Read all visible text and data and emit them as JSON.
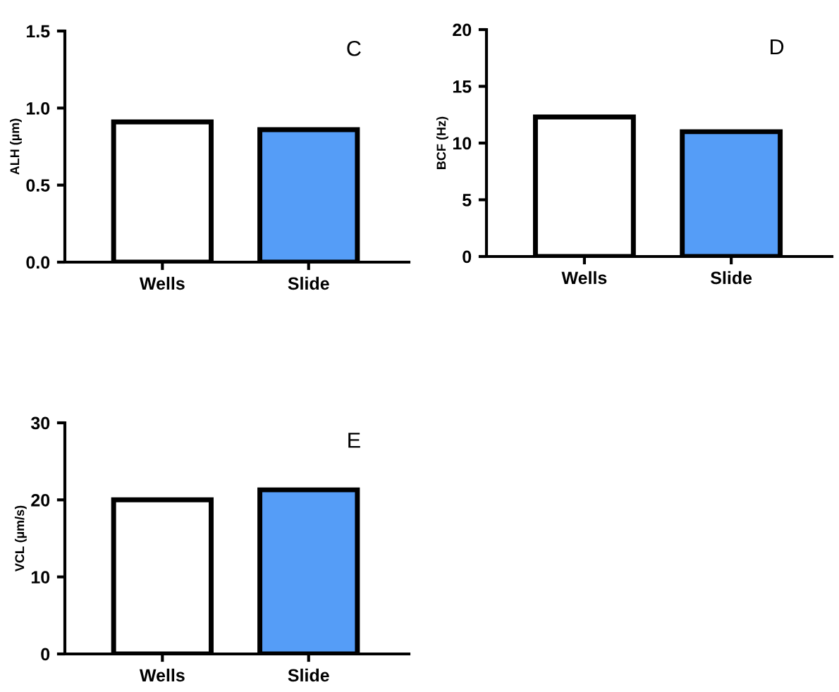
{
  "chart_data": [
    {
      "type": "bar",
      "title": "C",
      "ylabel": "ALH (µm)",
      "categories": [
        "Wells",
        "Slide"
      ],
      "values": [
        0.91,
        0.86
      ],
      "colors": [
        "#ffffff",
        "#559df7"
      ],
      "ylim": [
        0,
        1.5
      ],
      "yticks": [
        {
          "value": 0,
          "label": "0.0"
        },
        {
          "value": 0.5,
          "label": "0.5"
        },
        {
          "value": 1,
          "label": "1.0"
        },
        {
          "value": 1.5,
          "label": "1.5"
        }
      ],
      "grid": false
    },
    {
      "type": "bar",
      "title": "D",
      "ylabel": "BCF (Hz)",
      "categories": [
        "Wells",
        "Slide"
      ],
      "values": [
        12.3,
        11.0
      ],
      "colors": [
        "#ffffff",
        "#559df7"
      ],
      "ylim": [
        0,
        20
      ],
      "yticks": [
        0,
        5,
        10,
        15,
        20
      ],
      "grid": false
    },
    {
      "type": "bar",
      "title": "E",
      "ylabel": "VCL (µm/s)",
      "categories": [
        "Wells",
        "Slide"
      ],
      "values": [
        20.0,
        21.3
      ],
      "colors": [
        "#ffffff",
        "#559df7"
      ],
      "ylim": [
        0,
        30
      ],
      "yticks": [
        0,
        10,
        20,
        30
      ],
      "grid": false
    }
  ]
}
